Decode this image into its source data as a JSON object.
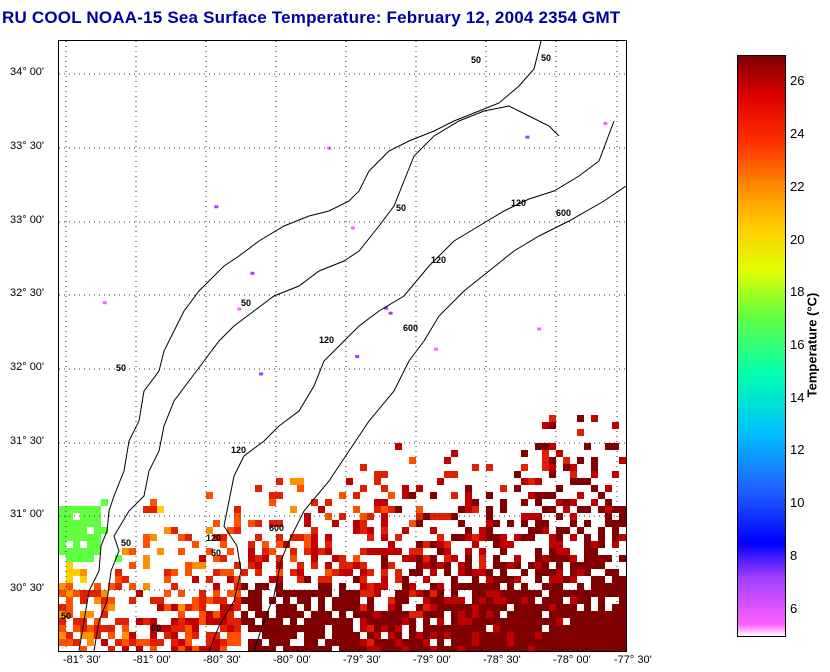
{
  "title": "RU COOL  NOAA-15  Sea Surface Temperature:  February 12, 2004 2354 GMT",
  "map": {
    "lat_labels": [
      "34° 00'",
      "33° 30'",
      "33° 00'",
      "32° 30'",
      "32° 00'",
      "31° 30'",
      "31° 00'",
      "30° 30'"
    ],
    "lon_labels": [
      "-81° 30'",
      "-81° 00'",
      "-80° 30'",
      "-80° 00'",
      "-79° 30'",
      "-79° 00'",
      "-78° 30'",
      "-78° 00'",
      "-77° 30'"
    ],
    "isobath_labels": [
      "50",
      "50",
      "50",
      "50",
      "50",
      "50",
      "50",
      "50",
      "120",
      "120",
      "120",
      "120",
      "120",
      "600",
      "600",
      "600",
      "60"
    ]
  },
  "colorbar": {
    "label": "Temperature (°C)",
    "ticks": [
      "26",
      "24",
      "22",
      "20",
      "18",
      "16",
      "14",
      "12",
      "10",
      "8",
      "6"
    ],
    "range": [
      5,
      27
    ]
  }
}
